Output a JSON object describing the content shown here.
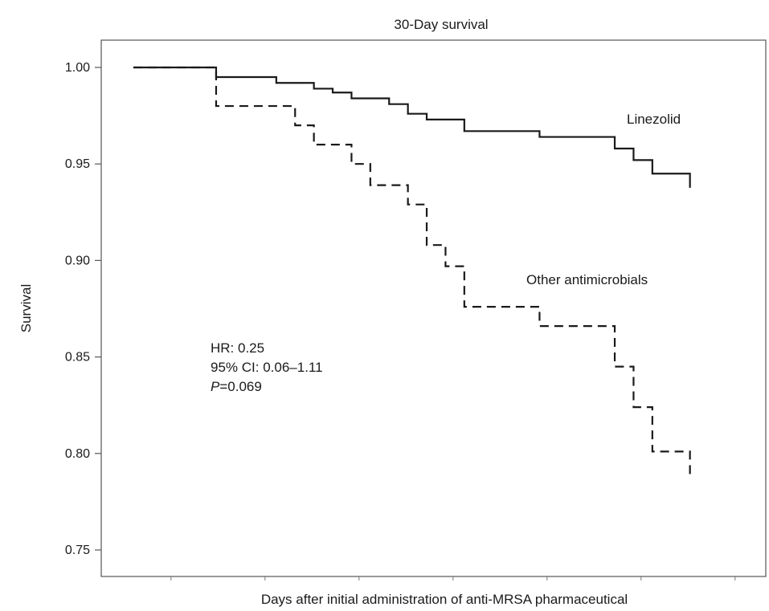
{
  "chart_data": {
    "type": "line",
    "title": "30-Day survival",
    "xlabel": "Days after initial administration of anti-MRSA pharmaceutical",
    "ylabel": "Survival",
    "ylim": [
      0.735,
      1.015
    ],
    "yticks": [
      "1.00",
      "0.95",
      "0.90",
      "0.85",
      "0.80",
      "0.75"
    ],
    "xlim": [
      0,
      31
    ],
    "xticks": [
      2,
      7,
      12,
      17,
      22,
      27,
      32
    ],
    "grid": false,
    "legend": "none",
    "series": [
      {
        "name": "Linezolid",
        "style": "solid",
        "color": "#1a1a1a",
        "steps": [
          [
            0,
            1.0
          ],
          [
            4.4,
            0.995
          ],
          [
            7.6,
            0.992
          ],
          [
            9.6,
            0.989
          ],
          [
            10.6,
            0.987
          ],
          [
            11.6,
            0.984
          ],
          [
            13.6,
            0.981
          ],
          [
            14.6,
            0.976
          ],
          [
            15.6,
            0.973
          ],
          [
            17.6,
            0.967
          ],
          [
            21.6,
            0.964
          ],
          [
            25.6,
            0.958
          ],
          [
            26.6,
            0.952
          ],
          [
            27.6,
            0.945
          ],
          [
            29.6,
            0.941
          ]
        ]
      },
      {
        "name": "Other antimicrobials",
        "style": "dashed",
        "color": "#1a1a1a",
        "steps": [
          [
            0,
            1.0
          ],
          [
            4.4,
            0.98
          ],
          [
            8.6,
            0.97
          ],
          [
            9.6,
            0.96
          ],
          [
            11.6,
            0.95
          ],
          [
            12.6,
            0.939
          ],
          [
            14.6,
            0.929
          ],
          [
            15.6,
            0.908
          ],
          [
            16.6,
            0.897
          ],
          [
            17.6,
            0.876
          ],
          [
            21.6,
            0.866
          ],
          [
            25.6,
            0.845
          ],
          [
            26.6,
            0.824
          ],
          [
            27.6,
            0.801
          ],
          [
            29.6,
            0.792
          ]
        ]
      }
    ],
    "annotations": {
      "hr": "HR: 0.25",
      "ci": "95% CI: 0.06–1.11",
      "p_prefix": "P",
      "p_value": "=0.069"
    }
  }
}
